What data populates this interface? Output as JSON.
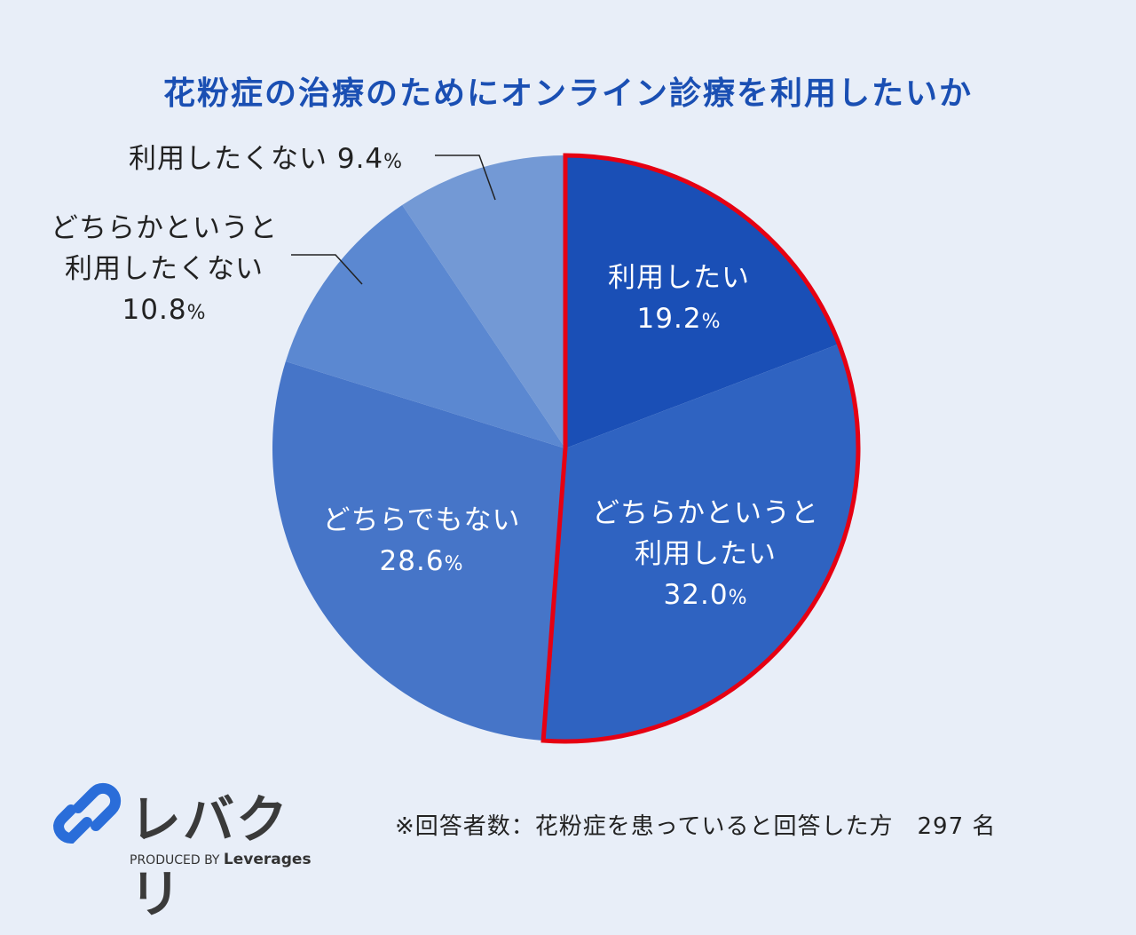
{
  "chart_data": {
    "type": "pie",
    "title": "花粉症の治療のためにオンライン診療を利用したいか",
    "start": "top",
    "direction": "clockwise",
    "unit": "%",
    "slices": [
      {
        "label": [
          "利用したい"
        ],
        "value": 19.2,
        "color": "#1a4fb6",
        "highlighted": true
      },
      {
        "label": [
          "どちらかというと",
          "利用したい"
        ],
        "value": 32.0,
        "color": "#2f63c1",
        "highlighted": true
      },
      {
        "label": [
          "どちらでもない"
        ],
        "value": 28.6,
        "color": "#4675c8",
        "highlighted": false
      },
      {
        "label": [
          "どちらかというと",
          "利用したくない"
        ],
        "value": 10.8,
        "color": "#5b88d1",
        "highlighted": false
      },
      {
        "label": [
          "利用したくない"
        ],
        "value": 9.4,
        "color": "#7399d5",
        "highlighted": false
      }
    ],
    "highlight_color": "#e60012",
    "note": "※回答者数：花粉症を患っていると回答した方　297 名"
  },
  "logo": {
    "name": "レバクリ",
    "sub_prefix": "PRODUCED BY",
    "sub_brand": "Leverages",
    "color": "#2a6dd9"
  }
}
